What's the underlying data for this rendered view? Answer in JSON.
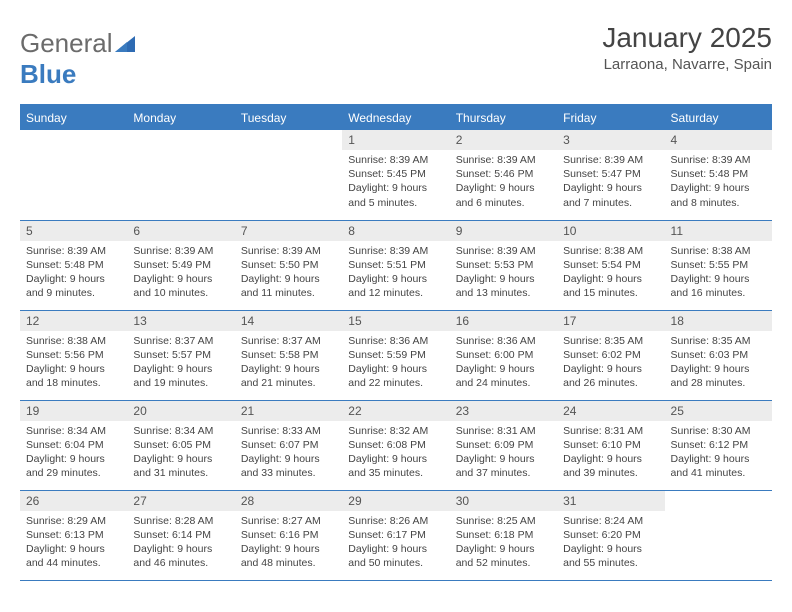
{
  "logo": {
    "text_general": "General",
    "text_blue": "Blue"
  },
  "title": {
    "month": "January 2025",
    "location": "Larraona, Navarre, Spain"
  },
  "colors": {
    "header_bg": "#3a7bbf",
    "daynum_bg": "#ececec",
    "text": "#444444",
    "logo_gray": "#6b6b6b"
  },
  "dayNames": [
    "Sunday",
    "Monday",
    "Tuesday",
    "Wednesday",
    "Thursday",
    "Friday",
    "Saturday"
  ],
  "weeks": [
    [
      null,
      null,
      null,
      {
        "n": "1",
        "sr": "8:39 AM",
        "ss": "5:45 PM",
        "dl": "9 hours and 5 minutes."
      },
      {
        "n": "2",
        "sr": "8:39 AM",
        "ss": "5:46 PM",
        "dl": "9 hours and 6 minutes."
      },
      {
        "n": "3",
        "sr": "8:39 AM",
        "ss": "5:47 PM",
        "dl": "9 hours and 7 minutes."
      },
      {
        "n": "4",
        "sr": "8:39 AM",
        "ss": "5:48 PM",
        "dl": "9 hours and 8 minutes."
      }
    ],
    [
      {
        "n": "5",
        "sr": "8:39 AM",
        "ss": "5:48 PM",
        "dl": "9 hours and 9 minutes."
      },
      {
        "n": "6",
        "sr": "8:39 AM",
        "ss": "5:49 PM",
        "dl": "9 hours and 10 minutes."
      },
      {
        "n": "7",
        "sr": "8:39 AM",
        "ss": "5:50 PM",
        "dl": "9 hours and 11 minutes."
      },
      {
        "n": "8",
        "sr": "8:39 AM",
        "ss": "5:51 PM",
        "dl": "9 hours and 12 minutes."
      },
      {
        "n": "9",
        "sr": "8:39 AM",
        "ss": "5:53 PM",
        "dl": "9 hours and 13 minutes."
      },
      {
        "n": "10",
        "sr": "8:38 AM",
        "ss": "5:54 PM",
        "dl": "9 hours and 15 minutes."
      },
      {
        "n": "11",
        "sr": "8:38 AM",
        "ss": "5:55 PM",
        "dl": "9 hours and 16 minutes."
      }
    ],
    [
      {
        "n": "12",
        "sr": "8:38 AM",
        "ss": "5:56 PM",
        "dl": "9 hours and 18 minutes."
      },
      {
        "n": "13",
        "sr": "8:37 AM",
        "ss": "5:57 PM",
        "dl": "9 hours and 19 minutes."
      },
      {
        "n": "14",
        "sr": "8:37 AM",
        "ss": "5:58 PM",
        "dl": "9 hours and 21 minutes."
      },
      {
        "n": "15",
        "sr": "8:36 AM",
        "ss": "5:59 PM",
        "dl": "9 hours and 22 minutes."
      },
      {
        "n": "16",
        "sr": "8:36 AM",
        "ss": "6:00 PM",
        "dl": "9 hours and 24 minutes."
      },
      {
        "n": "17",
        "sr": "8:35 AM",
        "ss": "6:02 PM",
        "dl": "9 hours and 26 minutes."
      },
      {
        "n": "18",
        "sr": "8:35 AM",
        "ss": "6:03 PM",
        "dl": "9 hours and 28 minutes."
      }
    ],
    [
      {
        "n": "19",
        "sr": "8:34 AM",
        "ss": "6:04 PM",
        "dl": "9 hours and 29 minutes."
      },
      {
        "n": "20",
        "sr": "8:34 AM",
        "ss": "6:05 PM",
        "dl": "9 hours and 31 minutes."
      },
      {
        "n": "21",
        "sr": "8:33 AM",
        "ss": "6:07 PM",
        "dl": "9 hours and 33 minutes."
      },
      {
        "n": "22",
        "sr": "8:32 AM",
        "ss": "6:08 PM",
        "dl": "9 hours and 35 minutes."
      },
      {
        "n": "23",
        "sr": "8:31 AM",
        "ss": "6:09 PM",
        "dl": "9 hours and 37 minutes."
      },
      {
        "n": "24",
        "sr": "8:31 AM",
        "ss": "6:10 PM",
        "dl": "9 hours and 39 minutes."
      },
      {
        "n": "25",
        "sr": "8:30 AM",
        "ss": "6:12 PM",
        "dl": "9 hours and 41 minutes."
      }
    ],
    [
      {
        "n": "26",
        "sr": "8:29 AM",
        "ss": "6:13 PM",
        "dl": "9 hours and 44 minutes."
      },
      {
        "n": "27",
        "sr": "8:28 AM",
        "ss": "6:14 PM",
        "dl": "9 hours and 46 minutes."
      },
      {
        "n": "28",
        "sr": "8:27 AM",
        "ss": "6:16 PM",
        "dl": "9 hours and 48 minutes."
      },
      {
        "n": "29",
        "sr": "8:26 AM",
        "ss": "6:17 PM",
        "dl": "9 hours and 50 minutes."
      },
      {
        "n": "30",
        "sr": "8:25 AM",
        "ss": "6:18 PM",
        "dl": "9 hours and 52 minutes."
      },
      {
        "n": "31",
        "sr": "8:24 AM",
        "ss": "6:20 PM",
        "dl": "9 hours and 55 minutes."
      },
      null
    ]
  ],
  "labels": {
    "sunrise": "Sunrise:",
    "sunset": "Sunset:",
    "daylight": "Daylight:"
  }
}
